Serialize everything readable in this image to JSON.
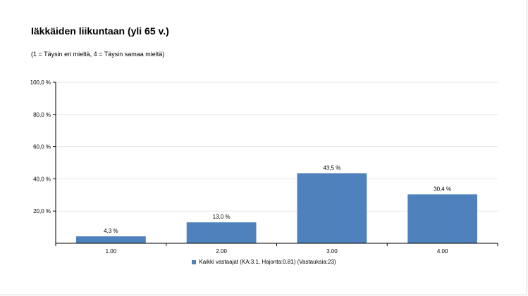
{
  "header": {
    "title": "Iäkkäiden liikuntaan (yli 65 v.)",
    "subtitle": "(1 = Täysin eri mieltä, 4 = Täysin samaa mieltä)"
  },
  "colors": {
    "bar": "#4f81bd",
    "grid": "#e6e6e6",
    "axis": "#000000"
  },
  "chart_data": {
    "type": "bar",
    "title": "Iäkkäiden liikuntaan (yli 65 v.)",
    "subtitle": "(1 = Täysin eri mieltä, 4 = Täysin samaa mieltä)",
    "categories": [
      "1.00",
      "2.00",
      "3.00",
      "4.00"
    ],
    "series": [
      {
        "name": "Kaikki vastaajat (KA:3.1, Hajonta:0.81) (Vastauksia:23)",
        "values": [
          4.3,
          13.0,
          43.5,
          30.4
        ],
        "value_labels": [
          "4,3 %",
          "13,0 %",
          "43,5 %",
          "30,4 %"
        ]
      }
    ],
    "ylim": [
      0,
      100
    ],
    "yticks": [
      20,
      40,
      60,
      80,
      100
    ],
    "ytick_labels": [
      "20,0 %",
      "40,0 %",
      "60,0 %",
      "80,0 %",
      "100,0 %"
    ],
    "grid": true,
    "legend_position": "bottom"
  }
}
